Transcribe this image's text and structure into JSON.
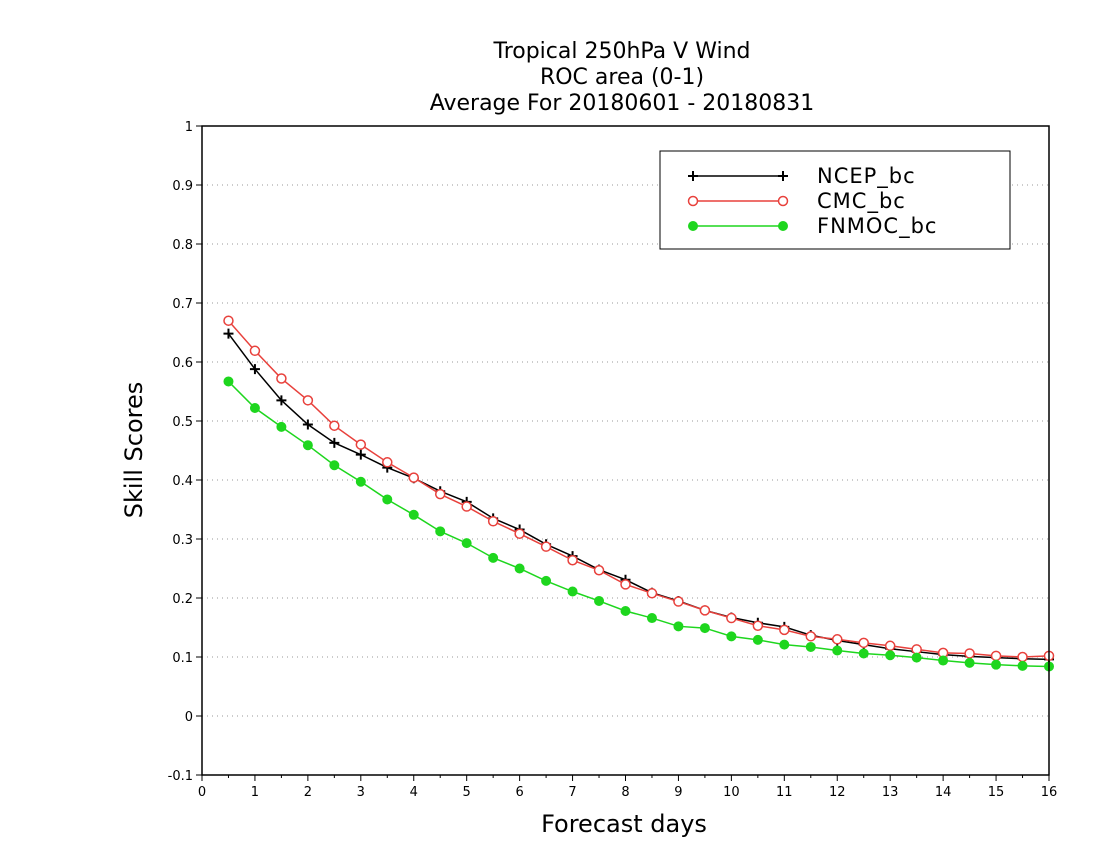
{
  "chart_data": {
    "type": "line",
    "title_lines": [
      "Tropical 250hPa V Wind",
      "ROC area (0-1)",
      "Average For 20180601 - 20180831"
    ],
    "xlabel": "Forecast days",
    "ylabel": "Skill Scores",
    "xlim": [
      0,
      16
    ],
    "ylim": [
      -0.1,
      1
    ],
    "xticks": [
      0,
      1,
      2,
      3,
      4,
      5,
      6,
      7,
      8,
      9,
      10,
      11,
      12,
      13,
      14,
      15,
      16
    ],
    "xtick_labels": [
      "0",
      "1",
      "2",
      "3",
      "4",
      "5",
      "6",
      "7",
      "8",
      "9",
      "10",
      "11",
      "12",
      "13",
      "14",
      "15",
      "16"
    ],
    "yticks": [
      -0.1,
      0,
      0.1,
      0.2,
      0.3,
      0.4,
      0.5,
      0.6,
      0.7,
      0.8,
      0.9,
      1
    ],
    "ytick_labels": [
      "-0.1",
      "0",
      "0.1",
      "0.2",
      "0.3",
      "0.4",
      "0.5",
      "0.6",
      "0.7",
      "0.8",
      "0.9",
      "1"
    ],
    "grid": "horizontal dotted",
    "legend_position": "top-right",
    "x": [
      0.5,
      1,
      1.5,
      2,
      2.5,
      3,
      3.5,
      4,
      4.5,
      5,
      5.5,
      6,
      6.5,
      7,
      7.5,
      8,
      8.5,
      9,
      9.5,
      10,
      10.5,
      11,
      11.5,
      12,
      12.5,
      13,
      13.5,
      14,
      14.5,
      15,
      15.5,
      16
    ],
    "series": [
      {
        "name": "NCEP_bc",
        "color": "#000000",
        "marker": "plus",
        "values": [
          0.648,
          0.588,
          0.535,
          0.494,
          0.463,
          0.443,
          0.421,
          0.403,
          0.381,
          0.363,
          0.335,
          0.316,
          0.291,
          0.271,
          0.248,
          0.231,
          0.209,
          0.195,
          0.179,
          0.167,
          0.158,
          0.151,
          0.137,
          0.128,
          0.121,
          0.114,
          0.109,
          0.104,
          0.101,
          0.099,
          0.097,
          0.096
        ]
      },
      {
        "name": "CMC_bc",
        "color": "#e8413c",
        "marker": "open-circle",
        "values": [
          0.67,
          0.619,
          0.572,
          0.535,
          0.492,
          0.46,
          0.43,
          0.404,
          0.376,
          0.355,
          0.33,
          0.309,
          0.287,
          0.264,
          0.247,
          0.223,
          0.208,
          0.194,
          0.179,
          0.166,
          0.153,
          0.146,
          0.135,
          0.13,
          0.124,
          0.119,
          0.113,
          0.107,
          0.106,
          0.102,
          0.1,
          0.102
        ]
      },
      {
        "name": "FNMOC_bc",
        "color": "#1ed61e",
        "marker": "filled-circle",
        "values": [
          0.567,
          0.522,
          0.49,
          0.459,
          0.425,
          0.397,
          0.367,
          0.341,
          0.313,
          0.293,
          0.268,
          0.25,
          0.229,
          0.211,
          0.195,
          0.178,
          0.166,
          0.152,
          0.149,
          0.135,
          0.129,
          0.121,
          0.117,
          0.111,
          0.106,
          0.103,
          0.099,
          0.094,
          0.09,
          0.087,
          0.085,
          0.084
        ]
      }
    ]
  }
}
